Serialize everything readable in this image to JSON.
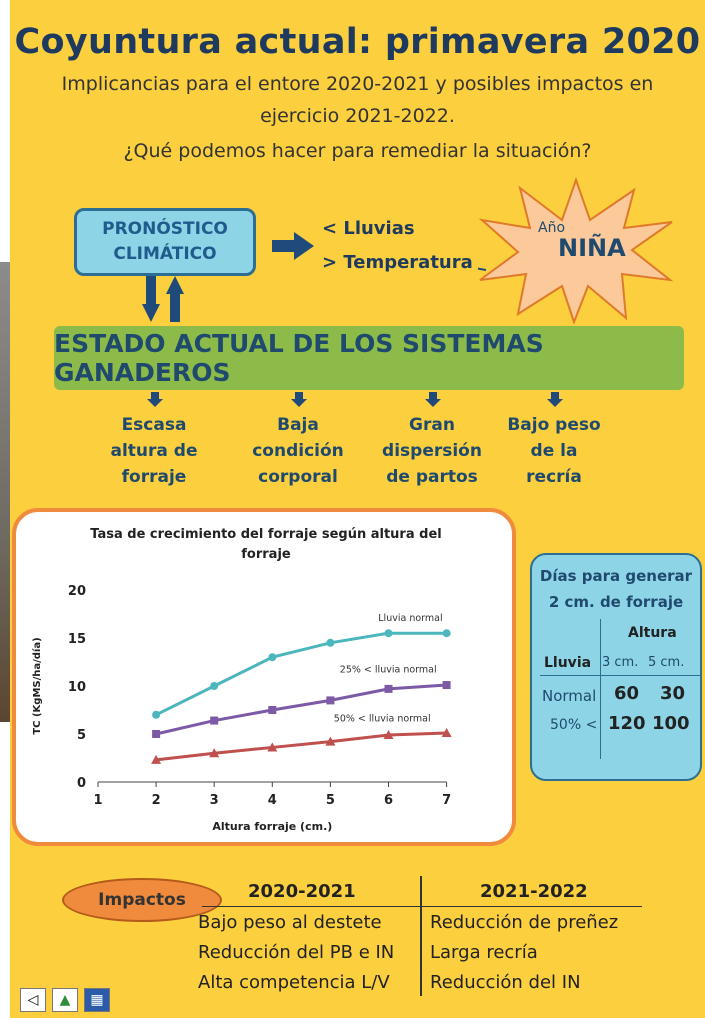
{
  "title": "Coyuntura actual: primavera 2020",
  "subtitle_lines": [
    "Implicancias para el entore 2020-2021 y posibles impactos en",
    "ejercicio 2021-2022.",
    "¿Qué podemos hacer para remediar la situación?"
  ],
  "forecast": {
    "box_line1": "PRONÓSTICO",
    "box_line2": "CLIMÁTICO",
    "effects": [
      "< Lluvias",
      "> Temperatura"
    ],
    "burst_small": "Año",
    "burst_big": "NIÑA"
  },
  "estado": "ESTADO ACTUAL DE LOS SISTEMAS GANADEROS",
  "estado_items": [
    [
      "Escasa",
      "altura de",
      "forraje"
    ],
    [
      "Baja",
      "condición",
      "corporal"
    ],
    [
      "Gran",
      "dispersión",
      "de partos"
    ],
    [
      "Bajo peso",
      "de la",
      "recría"
    ]
  ],
  "chart_data": {
    "type": "line",
    "title_lines": [
      "Tasa de crecimiento del forraje según altura del",
      "forraje"
    ],
    "xlabel": "Altura forraje (cm.)",
    "ylabel": "TC (KgMS/ha/día)",
    "xlim": [
      1,
      7
    ],
    "ylim": [
      0,
      20
    ],
    "x_ticks": [
      1,
      2,
      3,
      4,
      5,
      6,
      7
    ],
    "y_ticks": [
      0,
      5,
      10,
      15,
      20
    ],
    "x": [
      2,
      3,
      4,
      5,
      6,
      7
    ],
    "series": [
      {
        "name": "Lluvia normal",
        "values": [
          7,
          10,
          13,
          14.5,
          15.5,
          15.5
        ],
        "color": "#4bb7bd",
        "marker": "circle"
      },
      {
        "name": "25% < lluvia normal",
        "values": [
          5,
          6.4,
          7.5,
          8.5,
          9.7,
          10.1
        ],
        "color": "#7c5aa6",
        "marker": "square"
      },
      {
        "name": "50% < lluvia normal",
        "values": [
          2.3,
          3,
          3.6,
          4.2,
          4.9,
          5.1
        ],
        "color": "#c0504d",
        "marker": "triangle"
      }
    ],
    "grid": false,
    "legend": "inline labels"
  },
  "dias": {
    "title_lines": [
      "Días para generar",
      "2 cm. de forraje"
    ],
    "group_header": "Altura",
    "row_header": "Lluvia",
    "cols": [
      "3 cm.",
      "5 cm."
    ],
    "rows": [
      {
        "label": "Normal",
        "values": [
          "60",
          "30"
        ]
      },
      {
        "label": "50% <",
        "values": [
          "120",
          "100"
        ]
      }
    ]
  },
  "impactos": {
    "label": "Impactos",
    "col1_header": "2020-2021",
    "col2_header": "2021-2022",
    "col1": [
      "Bajo peso al destete",
      "Reducción del PB e IN",
      "Alta competencia L/V"
    ],
    "col2": [
      "Reducción de preñez",
      "Larga recría",
      "Reducción del IN"
    ]
  },
  "colors": {
    "background": "#fbcf3d",
    "title": "#1f3a5f",
    "estado_bar": "#8dbb4a",
    "panel_blue": "#8dd5e6",
    "accent_orange": "#f08a3c",
    "burst": "#fbc99a"
  }
}
